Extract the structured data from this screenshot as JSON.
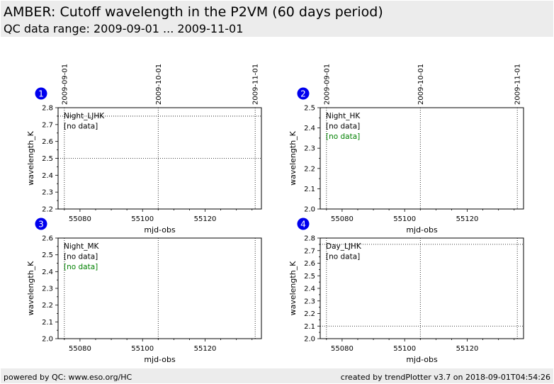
{
  "header": {
    "title": "AMBER: Cutoff wavelength in the P2VM (60 days period)",
    "subtitle": "QC data range: 2009-09-01 ... 2009-11-01"
  },
  "footer": {
    "left": "powered by QC: www.eso.org/HC",
    "right": "created by trendPlotter v3.7 on 2018-09-01T04:54:26"
  },
  "top_dates": [
    {
      "label": "2009-09-01",
      "mjd": 55075
    },
    {
      "label": "2009-10-01",
      "mjd": 55105
    },
    {
      "label": "2009-11-01",
      "mjd": 55136
    }
  ],
  "chart_data": [
    {
      "type": "scatter",
      "number": "1",
      "xlabel": "mjd-obs",
      "ylabel": "wavelength_K",
      "xlim": [
        55073,
        55138
      ],
      "ylim": [
        2.2,
        2.8
      ],
      "xticks": [
        55080,
        55100,
        55120
      ],
      "yticks": [
        2.2,
        2.3,
        2.4,
        2.5,
        2.6,
        2.7,
        2.8
      ],
      "ref_lines": [
        2.5,
        2.75
      ],
      "legend": [
        {
          "text": "Night_LJHK",
          "color": "#000000"
        },
        {
          "text": "[no data]",
          "color": "#000000"
        }
      ],
      "series": []
    },
    {
      "type": "scatter",
      "number": "2",
      "xlabel": "mjd-obs",
      "ylabel": "wavelength_K",
      "xlim": [
        55073,
        55138
      ],
      "ylim": [
        2.0,
        2.5
      ],
      "xticks": [
        55080,
        55100,
        55120
      ],
      "yticks": [
        2.0,
        2.1,
        2.2,
        2.3,
        2.4,
        2.5
      ],
      "ref_lines": [],
      "legend": [
        {
          "text": "Night_HK",
          "color": "#000000"
        },
        {
          "text": "[no data]",
          "color": "#000000"
        },
        {
          "text": "[no data]",
          "color": "#008000"
        }
      ],
      "series": []
    },
    {
      "type": "scatter",
      "number": "3",
      "xlabel": "mjd-obs",
      "ylabel": "wavelength_K",
      "xlim": [
        55073,
        55138
      ],
      "ylim": [
        2.0,
        2.6
      ],
      "xticks": [
        55080,
        55100,
        55120
      ],
      "yticks": [
        2.0,
        2.1,
        2.2,
        2.3,
        2.4,
        2.5,
        2.6
      ],
      "ref_lines": [],
      "legend": [
        {
          "text": "Night_MK",
          "color": "#000000"
        },
        {
          "text": "[no data]",
          "color": "#000000"
        },
        {
          "text": "[no data]",
          "color": "#008000"
        }
      ],
      "series": []
    },
    {
      "type": "scatter",
      "number": "4",
      "xlabel": "mjd-obs",
      "ylabel": "wavelength_K",
      "xlim": [
        55073,
        55138
      ],
      "ylim": [
        2.0,
        2.8
      ],
      "xticks": [
        55080,
        55100,
        55120
      ],
      "yticks": [
        2.0,
        2.1,
        2.2,
        2.3,
        2.4,
        2.5,
        2.6,
        2.7,
        2.8
      ],
      "ref_lines": [
        2.1,
        2.75
      ],
      "legend": [
        {
          "text": "Day_LJHK",
          "color": "#000000"
        },
        {
          "text": "[no data]",
          "color": "#000000"
        }
      ],
      "series": []
    }
  ],
  "colors": {
    "badge": "#0000ee",
    "badge_text": "#ffffff",
    "header_bg": "#ececec",
    "nodata_green": "#008000"
  }
}
